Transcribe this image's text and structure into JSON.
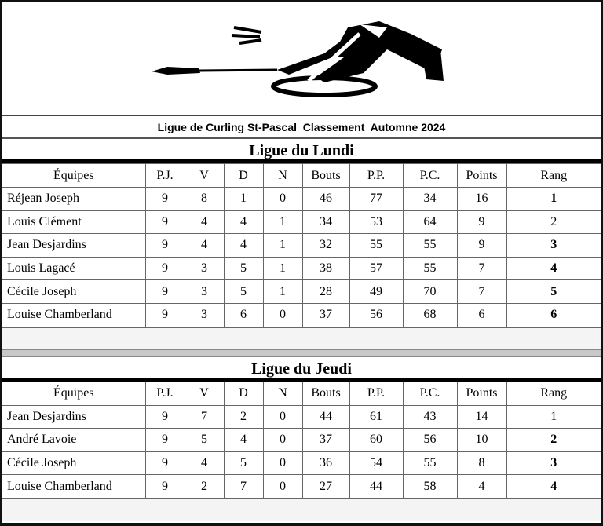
{
  "title": "Ligue de Curling St-Pascal  Classement  Automne 2024",
  "headers": [
    "Équipes",
    "P.J.",
    "V",
    "D",
    "N",
    "Bouts",
    "P.P.",
    "P.C.",
    "Points",
    "Rang"
  ],
  "leagues": [
    {
      "name": "Ligue du Lundi",
      "rows": [
        {
          "team": "Réjean Joseph",
          "pj": "9",
          "v": "8",
          "d": "1",
          "n": "0",
          "bouts": "46",
          "pp": "77",
          "pc": "34",
          "points": "16",
          "rang": "1",
          "rang_bold": true
        },
        {
          "team": "Louis Clément",
          "pj": "9",
          "v": "4",
          "d": "4",
          "n": "1",
          "bouts": "34",
          "pp": "53",
          "pc": "64",
          "points": "9",
          "rang": "2",
          "rang_bold": false
        },
        {
          "team": "Jean Desjardins",
          "pj": "9",
          "v": "4",
          "d": "4",
          "n": "1",
          "bouts": "32",
          "pp": "55",
          "pc": "55",
          "points": "9",
          "rang": "3",
          "rang_bold": true
        },
        {
          "team": "Louis Lagacé",
          "pj": "9",
          "v": "3",
          "d": "5",
          "n": "1",
          "bouts": "38",
          "pp": "57",
          "pc": "55",
          "points": "7",
          "rang": "4",
          "rang_bold": true
        },
        {
          "team": "Cécile Joseph",
          "pj": "9",
          "v": "3",
          "d": "5",
          "n": "1",
          "bouts": "28",
          "pp": "49",
          "pc": "70",
          "points": "7",
          "rang": "5",
          "rang_bold": true
        },
        {
          "team": "Louise Chamberland",
          "pj": "9",
          "v": "3",
          "d": "6",
          "n": "0",
          "bouts": "37",
          "pp": "56",
          "pc": "68",
          "points": "6",
          "rang": "6",
          "rang_bold": true
        }
      ]
    },
    {
      "name": "Ligue du Jeudi",
      "rows": [
        {
          "team": "Jean Desjardins",
          "pj": "9",
          "v": "7",
          "d": "2",
          "n": "0",
          "bouts": "44",
          "pp": "61",
          "pc": "43",
          "points": "14",
          "rang": "1",
          "rang_bold": false
        },
        {
          "team": "André Lavoie",
          "pj": "9",
          "v": "5",
          "d": "4",
          "n": "0",
          "bouts": "37",
          "pp": "60",
          "pc": "56",
          "points": "10",
          "rang": "2",
          "rang_bold": true
        },
        {
          "team": "Cécile Joseph",
          "pj": "9",
          "v": "4",
          "d": "5",
          "n": "0",
          "bouts": "36",
          "pp": "54",
          "pc": "55",
          "points": "8",
          "rang": "3",
          "rang_bold": true
        },
        {
          "team": "Louise Chamberland",
          "pj": "9",
          "v": "2",
          "d": "7",
          "n": "0",
          "bouts": "27",
          "pp": "44",
          "pc": "58",
          "points": "4",
          "rang": "4",
          "rang_bold": true
        }
      ]
    }
  ]
}
